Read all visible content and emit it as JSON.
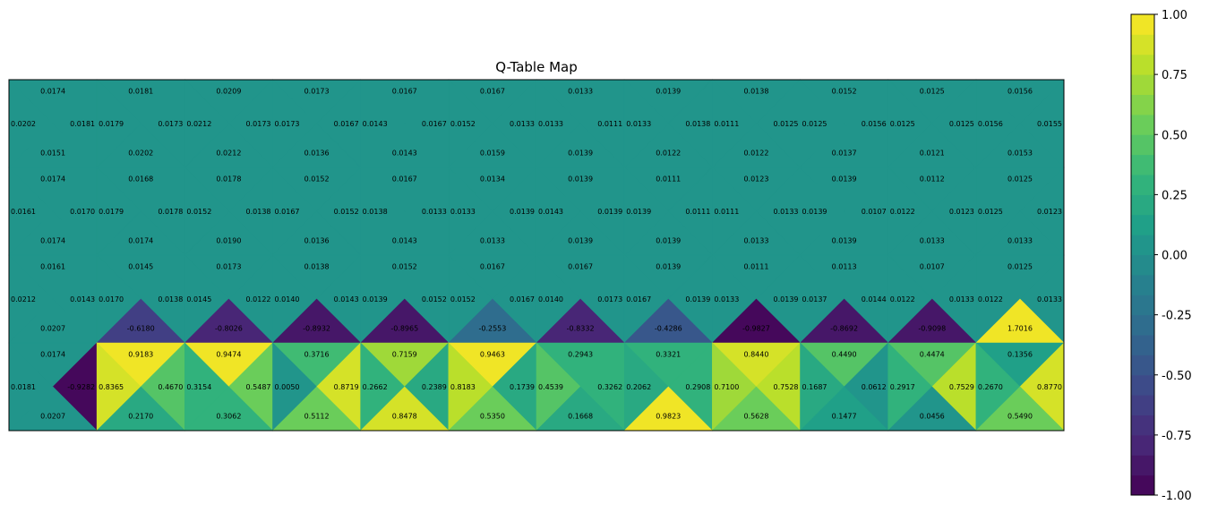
{
  "chart_data": {
    "type": "heatmap",
    "title": "Q-Table Map",
    "colormap": "viridis",
    "clim": [
      -1.0,
      1.0
    ],
    "grid": {
      "rows": 12,
      "cols": 4
    },
    "cell_order": "each cell is split into four triangles: top, left, right, bottom",
    "cells": [
      {
        "row": 0,
        "col": 0,
        "top": 0.0174,
        "left": 0.0202,
        "right": 0.0181,
        "bottom": 0.0151
      },
      {
        "row": 0,
        "col": 1,
        "top": 0.0181,
        "left": 0.0179,
        "right": 0.0173,
        "bottom": 0.0202
      },
      {
        "row": 0,
        "col": 2,
        "top": 0.0209,
        "left": 0.0212,
        "right": 0.0173,
        "bottom": 0.0212
      },
      {
        "row": 0,
        "col": 3,
        "top": 0.0173,
        "left": 0.0173,
        "right": 0.0167,
        "bottom": 0.0136
      },
      {
        "row": 0,
        "col": 4,
        "top": 0.0167,
        "left": 0.0143,
        "right": 0.0167,
        "bottom": 0.0143
      },
      {
        "row": 0,
        "col": 5,
        "top": 0.0167,
        "left": 0.0152,
        "right": 0.0133,
        "bottom": 0.0159
      },
      {
        "row": 0,
        "col": 6,
        "top": 0.0133,
        "left": 0.0133,
        "right": 0.0111,
        "bottom": 0.0139
      },
      {
        "row": 0,
        "col": 7,
        "top": 0.0139,
        "left": 0.0133,
        "right": 0.0138,
        "bottom": 0.0122
      },
      {
        "row": 0,
        "col": 8,
        "top": 0.0138,
        "left": 0.0111,
        "right": 0.0125,
        "bottom": 0.0122
      },
      {
        "row": 0,
        "col": 9,
        "top": 0.0152,
        "left": 0.0125,
        "right": 0.0156,
        "bottom": 0.0137
      },
      {
        "row": 0,
        "col": 10,
        "top": 0.0125,
        "left": 0.0125,
        "right": 0.0125,
        "bottom": 0.0121
      },
      {
        "row": 0,
        "col": 11,
        "top": 0.0156,
        "left": 0.0156,
        "right": 0.0155,
        "bottom": 0.0153
      },
      {
        "row": 1,
        "col": 0,
        "top": 0.0174,
        "left": 0.0161,
        "right": 0.017,
        "bottom": 0.0174
      },
      {
        "row": 1,
        "col": 1,
        "top": 0.0168,
        "left": 0.0179,
        "right": 0.0178,
        "bottom": 0.0174
      },
      {
        "row": 1,
        "col": 2,
        "top": 0.0178,
        "left": 0.0152,
        "right": 0.0138,
        "bottom": 0.019
      },
      {
        "row": 1,
        "col": 3,
        "top": 0.0152,
        "left": 0.0167,
        "right": 0.0152,
        "bottom": 0.0136
      },
      {
        "row": 1,
        "col": 4,
        "top": 0.0167,
        "left": 0.0138,
        "right": 0.0133,
        "bottom": 0.0143
      },
      {
        "row": 1,
        "col": 5,
        "top": 0.0134,
        "left": 0.0133,
        "right": 0.0139,
        "bottom": 0.0133
      },
      {
        "row": 1,
        "col": 6,
        "top": 0.0139,
        "left": 0.0143,
        "right": 0.0139,
        "bottom": 0.0139
      },
      {
        "row": 1,
        "col": 7,
        "top": 0.0111,
        "left": 0.0139,
        "right": 0.0111,
        "bottom": 0.0139
      },
      {
        "row": 1,
        "col": 8,
        "top": 0.0123,
        "left": 0.0111,
        "right": 0.0133,
        "bottom": 0.0133
      },
      {
        "row": 1,
        "col": 9,
        "top": 0.0139,
        "left": 0.0139,
        "right": 0.0107,
        "bottom": 0.0139
      },
      {
        "row": 1,
        "col": 10,
        "top": 0.0112,
        "left": 0.0122,
        "right": 0.0123,
        "bottom": 0.0133
      },
      {
        "row": 1,
        "col": 11,
        "top": 0.0125,
        "left": 0.0125,
        "right": 0.0123,
        "bottom": 0.0133
      },
      {
        "row": 2,
        "col": 0,
        "top": 0.0161,
        "left": 0.0212,
        "right": 0.0143,
        "bottom": 0.0207
      },
      {
        "row": 2,
        "col": 1,
        "top": 0.0145,
        "left": 0.017,
        "right": 0.0138,
        "bottom": -0.618
      },
      {
        "row": 2,
        "col": 2,
        "top": 0.0173,
        "left": 0.0145,
        "right": 0.0122,
        "bottom": -0.8026
      },
      {
        "row": 2,
        "col": 3,
        "top": 0.0138,
        "left": 0.014,
        "right": 0.0143,
        "bottom": -0.8932
      },
      {
        "row": 2,
        "col": 4,
        "top": 0.0152,
        "left": 0.0139,
        "right": 0.0152,
        "bottom": -0.8965
      },
      {
        "row": 2,
        "col": 5,
        "top": 0.0167,
        "left": 0.0152,
        "right": 0.0167,
        "bottom": -0.2553
      },
      {
        "row": 2,
        "col": 6,
        "top": 0.0167,
        "left": 0.014,
        "right": 0.0173,
        "bottom": -0.8332
      },
      {
        "row": 2,
        "col": 7,
        "top": 0.0139,
        "left": 0.0167,
        "right": 0.0139,
        "bottom": -0.4286
      },
      {
        "row": 2,
        "col": 8,
        "top": 0.0111,
        "left": 0.0133,
        "right": 0.0139,
        "bottom": -0.9827
      },
      {
        "row": 2,
        "col": 9,
        "top": 0.0113,
        "left": 0.0137,
        "right": 0.0144,
        "bottom": -0.8692
      },
      {
        "row": 2,
        "col": 10,
        "top": 0.0107,
        "left": 0.0122,
        "right": 0.0133,
        "bottom": -0.9098
      },
      {
        "row": 2,
        "col": 11,
        "top": 0.0125,
        "left": 0.0122,
        "right": 0.0133,
        "bottom": 1.7016
      },
      {
        "row": 3,
        "col": 0,
        "top": 0.0174,
        "left": 0.0181,
        "right": -0.9282,
        "bottom": 0.0207
      },
      {
        "row": 3,
        "col": 1,
        "top": 0.9183,
        "left": 0.8365,
        "right": 0.467,
        "bottom": 0.217
      },
      {
        "row": 3,
        "col": 2,
        "top": 0.9474,
        "left": 0.3154,
        "right": 0.5487,
        "bottom": 0.3062
      },
      {
        "row": 3,
        "col": 3,
        "top": 0.3716,
        "left": 0.005,
        "right": 0.8719,
        "bottom": 0.5112
      },
      {
        "row": 3,
        "col": 4,
        "top": 0.7159,
        "left": 0.2662,
        "right": 0.2389,
        "bottom": 0.8478
      },
      {
        "row": 3,
        "col": 5,
        "top": 0.9463,
        "left": 0.8183,
        "right": 0.1739,
        "bottom": 0.535
      },
      {
        "row": 3,
        "col": 6,
        "top": 0.2943,
        "left": 0.4539,
        "right": 0.3262,
        "bottom": 0.1668
      },
      {
        "row": 3,
        "col": 7,
        "top": 0.3321,
        "left": 0.2062,
        "right": 0.2908,
        "bottom": 0.9823
      },
      {
        "row": 3,
        "col": 8,
        "top": 0.844,
        "left": 0.71,
        "right": 0.7528,
        "bottom": 0.5628
      },
      {
        "row": 3,
        "col": 9,
        "top": 0.449,
        "left": 0.1687,
        "right": 0.0612,
        "bottom": 0.1477
      },
      {
        "row": 3,
        "col": 10,
        "top": 0.4474,
        "left": 0.2917,
        "right": 0.7529,
        "bottom": 0.0456
      },
      {
        "row": 3,
        "col": 11,
        "top": 0.1356,
        "left": 0.267,
        "right": 0.877,
        "bottom": 0.549
      }
    ],
    "colorbar": {
      "ticks": [
        "-1.00",
        "-0.75",
        "-0.50",
        "-0.25",
        "0.00",
        "0.25",
        "0.50",
        "0.75",
        "1.00"
      ],
      "tick_values": [
        -1.0,
        -0.75,
        -0.5,
        -0.25,
        0.0,
        0.25,
        0.5,
        0.75,
        1.0
      ],
      "levels": 24
    }
  }
}
